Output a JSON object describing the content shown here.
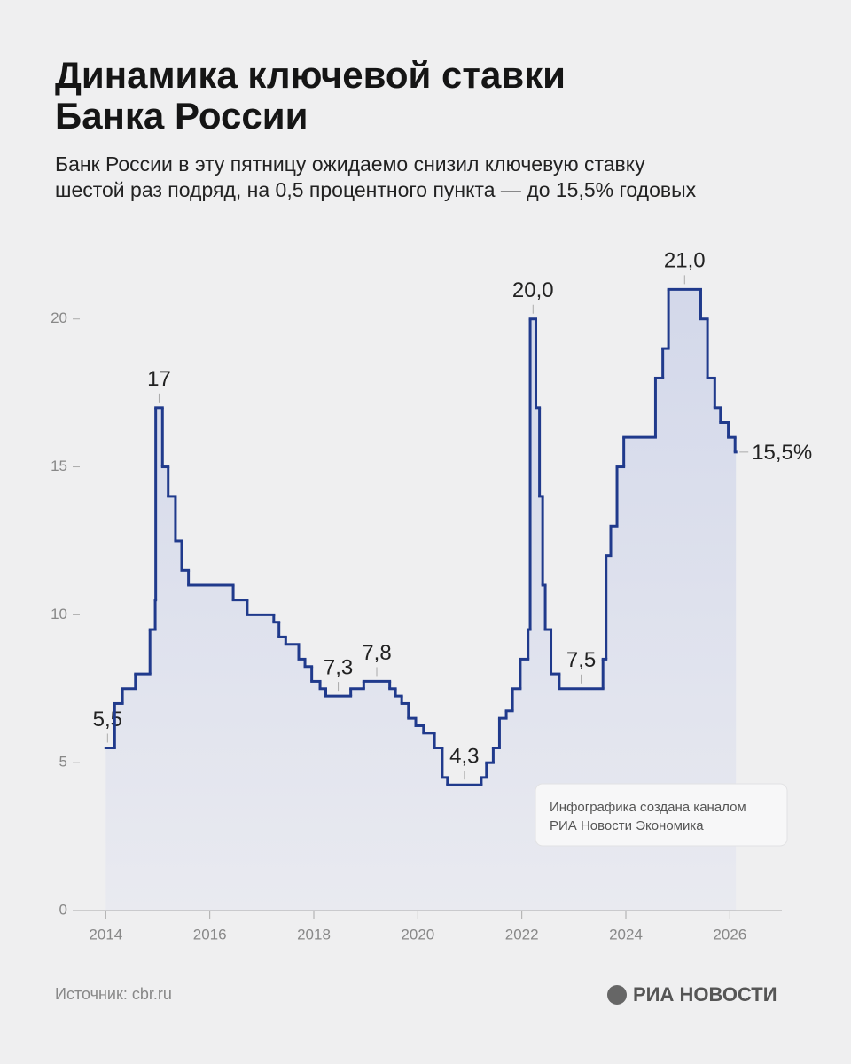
{
  "header": {
    "title_lines": [
      "Динамика ключевой ставки",
      "Банка России"
    ],
    "subtitle_lines": [
      "Банк России в эту пятницу ожидаемо снизил ключевую ставку",
      "шестой раз подряд, на 0,5 процентного пункта — до 15,5% годовых"
    ]
  },
  "chart_data": {
    "type": "step",
    "series": [
      {
        "color": "#203a8c",
        "x": [
          2014.0,
          2014.17,
          2014.32,
          2014.57,
          2014.85,
          2014.95,
          2014.96,
          2015.09,
          2015.2,
          2015.34,
          2015.46,
          2015.59,
          2016.45,
          2016.72,
          2017.23,
          2017.33,
          2017.46,
          2017.71,
          2017.83,
          2017.96,
          2018.12,
          2018.23,
          2018.71,
          2018.96,
          2019.46,
          2019.57,
          2019.69,
          2019.82,
          2019.96,
          2020.11,
          2020.32,
          2020.47,
          2020.57,
          2021.22,
          2021.32,
          2021.45,
          2021.57,
          2021.7,
          2021.82,
          2021.97,
          2022.12,
          2022.16,
          2022.27,
          2022.34,
          2022.4,
          2022.45,
          2022.56,
          2022.72,
          2023.56,
          2023.62,
          2023.71,
          2023.83,
          2023.96,
          2024.57,
          2024.71,
          2024.82,
          2025.44,
          2025.57,
          2025.71,
          2025.82,
          2025.97,
          2026.1
        ],
        "values": [
          5.5,
          7,
          7.5,
          8,
          9.5,
          10.5,
          17,
          15,
          14,
          12.5,
          11.5,
          11,
          10.5,
          10,
          9.75,
          9.25,
          9,
          8.5,
          8.25,
          7.75,
          7.5,
          7.25,
          7.5,
          7.75,
          7.5,
          7.25,
          7,
          6.5,
          6.25,
          6,
          5.5,
          4.5,
          4.25,
          4.5,
          5,
          5.5,
          6.5,
          6.75,
          7.5,
          8.5,
          9.5,
          20,
          17,
          14,
          11,
          9.5,
          8,
          7.5,
          8.5,
          12,
          13,
          15,
          16,
          18,
          19,
          21,
          20,
          18,
          17,
          16.5,
          16,
          15.5
        ],
        "value_labels": [
          "5,5",
          null,
          null,
          null,
          null,
          null,
          "17",
          null,
          null,
          null,
          null,
          null,
          null,
          null,
          null,
          null,
          null,
          null,
          null,
          null,
          null,
          "7,3",
          null,
          "7,8",
          null,
          null,
          null,
          null,
          null,
          null,
          null,
          null,
          "4,3",
          null,
          null,
          null,
          null,
          null,
          null,
          null,
          null,
          "20,0",
          null,
          null,
          null,
          null,
          null,
          "7,5",
          null,
          null,
          null,
          null,
          null,
          null,
          null,
          "21,0",
          null,
          null,
          null,
          null,
          null,
          "15,5%"
        ]
      }
    ],
    "xlim": [
      2013.5,
      2027
    ],
    "xticks": [
      2014,
      2016,
      2018,
      2020,
      2022,
      2024,
      2026
    ],
    "ylim": [
      0,
      22
    ],
    "yticks": [
      0,
      5,
      10,
      15,
      20
    ],
    "note_lines": [
      "Инфографика создана каналом",
      "РИА Новости Экономика"
    ]
  },
  "footer": {
    "source": "Источник: cbr.ru",
    "logo": "РИА НОВОСТИ"
  }
}
